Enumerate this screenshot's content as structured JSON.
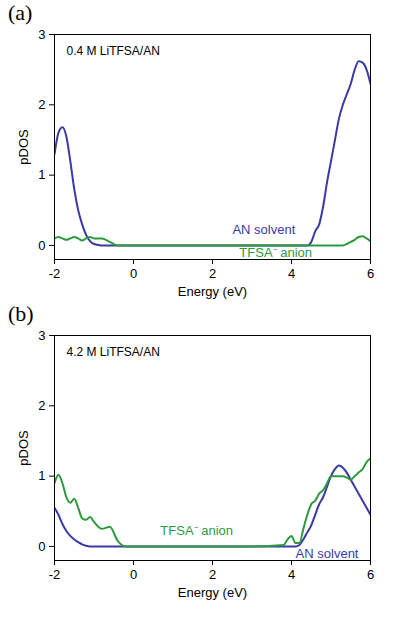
{
  "chart_data": [
    {
      "type": "line",
      "panel": "(a)",
      "title": "0.4 M LiTFSA/AN",
      "x_label": "Energy (eV)",
      "y_label": "pDOS",
      "xlim": [
        -2,
        6
      ],
      "xticks": [
        -2,
        0,
        2,
        4,
        6
      ],
      "ylim": [
        -0.2,
        3
      ],
      "yticks": [
        0,
        1,
        2,
        3
      ],
      "grid": false,
      "x": [
        -2,
        -1.9,
        -1.8,
        -1.7,
        -1.6,
        -1.5,
        -1.4,
        -1.3,
        -1.2,
        -1.1,
        -1,
        -0.8,
        -0.6,
        -0.4,
        -0.2,
        0,
        1,
        2,
        3,
        3.8,
        3.9,
        4,
        4.1,
        4.2,
        4.3,
        4.4,
        4.5,
        4.6,
        4.7,
        4.8,
        4.9,
        5,
        5.1,
        5.2,
        5.3,
        5.4,
        5.5,
        5.6,
        5.7,
        5.8,
        5.9,
        6
      ],
      "series": [
        {
          "name": "AN solvent",
          "color": "#3a3aa6",
          "values": [
            1.3,
            1.6,
            1.68,
            1.55,
            1.2,
            0.8,
            0.5,
            0.3,
            0.15,
            0.06,
            0.02,
            0,
            0,
            0,
            0,
            0,
            0,
            0,
            0,
            0,
            0,
            0,
            0,
            0,
            0,
            0,
            0.05,
            0.2,
            0.3,
            0.55,
            0.9,
            1.2,
            1.5,
            1.8,
            2.0,
            2.15,
            2.3,
            2.5,
            2.62,
            2.6,
            2.5,
            2.3
          ]
        },
        {
          "name": "TFSA⁻ anion",
          "color": "#2e9a3e",
          "values": [
            0.1,
            0.12,
            0.1,
            0.08,
            0.1,
            0.12,
            0.1,
            0.07,
            0.1,
            0.12,
            0.1,
            0.1,
            0.05,
            0,
            0,
            0,
            0,
            0,
            0,
            0,
            0,
            0,
            0,
            0,
            0,
            0,
            0,
            0,
            0,
            0,
            0,
            0,
            0,
            0,
            0,
            0.02,
            0.05,
            0.08,
            0.12,
            0.13,
            0.1,
            0.06
          ]
        }
      ],
      "annotations": [
        {
          "text": "AN solvent",
          "x": 3.3,
          "y": 0.22,
          "color": "#3a3aa6"
        },
        {
          "text": "TFSA⁻ anion",
          "x": 3.6,
          "y": -0.1,
          "color": "#2e9a3e"
        }
      ]
    },
    {
      "type": "line",
      "panel": "(b)",
      "title": "4.2 M LiTFSA/AN",
      "x_label": "Energy (eV)",
      "y_label": "pDOS",
      "xlim": [
        -2,
        6
      ],
      "xticks": [
        -2,
        0,
        2,
        4,
        6
      ],
      "ylim": [
        -0.2,
        3
      ],
      "yticks": [
        0,
        1,
        2,
        3
      ],
      "grid": false,
      "x": [
        -2,
        -1.9,
        -1.8,
        -1.7,
        -1.6,
        -1.5,
        -1.4,
        -1.3,
        -1.2,
        -1.1,
        -1,
        -0.8,
        -0.6,
        -0.4,
        -0.2,
        0,
        1,
        2,
        3,
        3.8,
        3.9,
        4,
        4.1,
        4.2,
        4.3,
        4.4,
        4.5,
        4.6,
        4.7,
        4.8,
        4.9,
        5,
        5.1,
        5.2,
        5.3,
        5.4,
        5.5,
        5.6,
        5.7,
        5.8,
        5.9,
        6
      ],
      "series": [
        {
          "name": "AN solvent",
          "color": "#3a3aa6",
          "values": [
            0.55,
            0.45,
            0.32,
            0.22,
            0.15,
            0.1,
            0.06,
            0.03,
            0.01,
            0,
            0,
            0,
            0,
            0,
            0,
            0,
            0,
            0,
            0,
            0,
            0,
            0,
            0,
            0.02,
            0.1,
            0.2,
            0.3,
            0.45,
            0.6,
            0.7,
            0.85,
            1.0,
            1.1,
            1.15,
            1.12,
            1.05,
            0.95,
            0.85,
            0.75,
            0.65,
            0.55,
            0.45
          ]
        },
        {
          "name": "TFSA⁻ anion",
          "color": "#2e9a3e",
          "values": [
            0.9,
            1.02,
            0.9,
            0.7,
            0.62,
            0.68,
            0.55,
            0.4,
            0.38,
            0.42,
            0.35,
            0.25,
            0.28,
            0.08,
            0,
            0,
            0,
            0,
            0,
            0.02,
            0.1,
            0.15,
            0.05,
            0.05,
            0.25,
            0.45,
            0.6,
            0.65,
            0.75,
            0.8,
            0.9,
            1.0,
            1.0,
            1.0,
            1.0,
            0.98,
            0.95,
            1.0,
            1.05,
            1.1,
            1.2,
            1.25
          ]
        }
      ],
      "annotations": [
        {
          "text": "TFSA⁻ anion",
          "x": 1.6,
          "y": 0.22,
          "color": "#2e9a3e"
        },
        {
          "text": "AN solvent",
          "x": 4.9,
          "y": -0.1,
          "color": "#3a3aa6"
        }
      ]
    }
  ]
}
